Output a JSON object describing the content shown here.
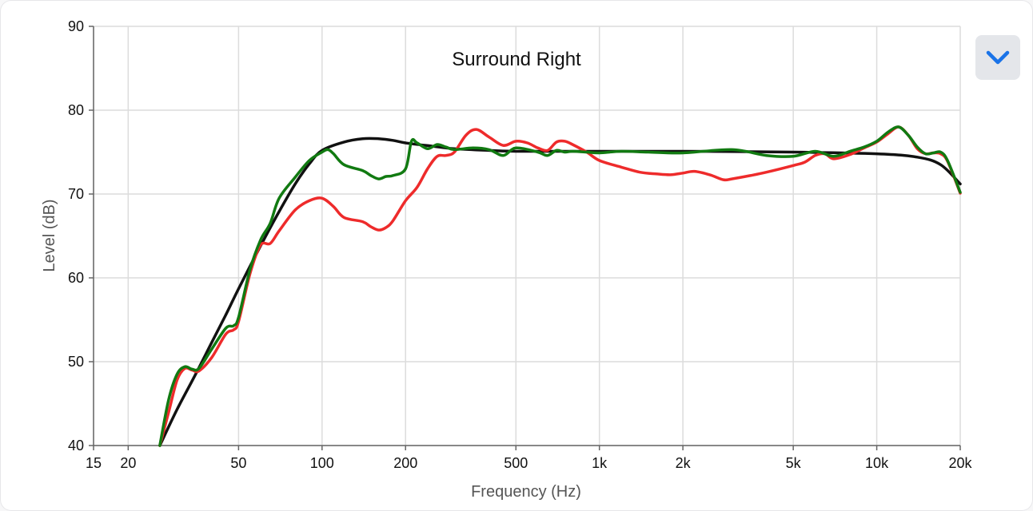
{
  "chart_data": {
    "type": "line",
    "title": "Surround Right",
    "xlabel": "Frequency (Hz)",
    "ylabel": "Level (dB)",
    "x_scale": "log",
    "xlim": [
      15,
      20000
    ],
    "ylim": [
      40,
      90
    ],
    "grid": true,
    "x_ticks": [
      {
        "value": 15,
        "label": "15"
      },
      {
        "value": 20,
        "label": "20"
      },
      {
        "value": 50,
        "label": "50"
      },
      {
        "value": 100,
        "label": "100"
      },
      {
        "value": 200,
        "label": "200"
      },
      {
        "value": 500,
        "label": "500"
      },
      {
        "value": 1000,
        "label": "1k"
      },
      {
        "value": 2000,
        "label": "2k"
      },
      {
        "value": 5000,
        "label": "5k"
      },
      {
        "value": 10000,
        "label": "10k"
      },
      {
        "value": 20000,
        "label": "20k"
      }
    ],
    "y_ticks": [
      {
        "value": 40,
        "label": "40"
      },
      {
        "value": 50,
        "label": "50"
      },
      {
        "value": 60,
        "label": "60"
      },
      {
        "value": 70,
        "label": "70"
      },
      {
        "value": 80,
        "label": "80"
      },
      {
        "value": 90,
        "label": "90"
      }
    ],
    "series": [
      {
        "color": "#111111",
        "x": [
          26,
          30,
          35,
          40,
          45,
          50,
          60,
          70,
          80,
          90,
          100,
          120,
          140,
          160,
          180,
          200,
          250,
          300,
          400,
          500,
          700,
          1000,
          2000,
          5000,
          10000,
          14000,
          17000,
          20000
        ],
        "y": [
          40,
          44.3,
          48.5,
          52.3,
          55.6,
          58.7,
          63.8,
          67.9,
          71.2,
          73.6,
          75.2,
          76.2,
          76.6,
          76.6,
          76.4,
          76.1,
          75.7,
          75.4,
          75.2,
          75.1,
          75.1,
          75.1,
          75.1,
          75.0,
          74.8,
          74.4,
          73.5,
          71.2
        ]
      },
      {
        "color": "#ee2b2b",
        "x": [
          26,
          28,
          30,
          32,
          34,
          36,
          40,
          45,
          48,
          50,
          55,
          60,
          65,
          70,
          80,
          90,
          100,
          110,
          120,
          140,
          150,
          160,
          170,
          180,
          200,
          220,
          240,
          260,
          280,
          300,
          330,
          360,
          400,
          450,
          500,
          550,
          600,
          650,
          700,
          750,
          800,
          900,
          1000,
          1200,
          1400,
          1600,
          1800,
          2000,
          2200,
          2500,
          2800,
          3000,
          3500,
          4000,
          5000,
          5500,
          6000,
          6500,
          7000,
          8000,
          9000,
          10000,
          11000,
          12000,
          13000,
          14000,
          15000,
          16000,
          17000,
          18000,
          20000
        ],
        "y": [
          40,
          44,
          47.8,
          49.2,
          49.0,
          48.9,
          50.5,
          53.3,
          53.8,
          54.8,
          60.5,
          63.9,
          64.1,
          65.6,
          68.1,
          69.2,
          69.5,
          68.5,
          67.2,
          66.7,
          66.1,
          65.7,
          66.0,
          66.8,
          69.2,
          70.8,
          73.0,
          74.5,
          74.6,
          75.0,
          77.0,
          77.7,
          76.8,
          75.8,
          76.3,
          76.1,
          75.5,
          75.2,
          76.2,
          76.3,
          75.9,
          75.0,
          74.0,
          73.2,
          72.6,
          72.4,
          72.3,
          72.5,
          72.7,
          72.3,
          71.7,
          71.8,
          72.2,
          72.6,
          73.4,
          73.8,
          74.6,
          74.8,
          74.2,
          74.7,
          75.5,
          76.2,
          77.2,
          78.0,
          77.0,
          75.4,
          74.8,
          74.9,
          74.8,
          73.9,
          70.1
        ]
      },
      {
        "color": "#117a11",
        "x": [
          26,
          28,
          30,
          32,
          34,
          36,
          40,
          45,
          48,
          50,
          55,
          60,
          65,
          70,
          80,
          90,
          100,
          105,
          110,
          120,
          140,
          150,
          160,
          170,
          180,
          200,
          210,
          220,
          240,
          260,
          280,
          300,
          350,
          400,
          450,
          500,
          600,
          650,
          700,
          750,
          800,
          900,
          1000,
          1200,
          1500,
          2000,
          3000,
          4000,
          5000,
          6000,
          7000,
          8000,
          9000,
          10000,
          11000,
          12000,
          13000,
          14000,
          15000,
          16000,
          17000,
          18000,
          20000
        ],
        "y": [
          40,
          45.5,
          48.5,
          49.4,
          49.1,
          49.2,
          51.5,
          54.0,
          54.3,
          55.3,
          61.0,
          64.5,
          66.5,
          69.5,
          72.0,
          74.0,
          75.0,
          75.3,
          74.8,
          73.5,
          72.8,
          72.2,
          71.8,
          72.1,
          72.2,
          73.0,
          76.3,
          76.1,
          75.4,
          75.9,
          75.6,
          75.3,
          75.5,
          75.3,
          74.6,
          75.5,
          75.0,
          74.6,
          75.2,
          75.0,
          75.1,
          75.0,
          74.9,
          75.1,
          75.0,
          74.9,
          75.3,
          74.6,
          74.5,
          75.1,
          74.5,
          75.1,
          75.6,
          76.3,
          77.4,
          78.0,
          77.0,
          75.6,
          74.8,
          74.9,
          75.0,
          74.0,
          70.2
        ]
      }
    ]
  },
  "ui": {
    "collapse_icon": "chevron-down-icon",
    "accent_color": "#1a73e8"
  }
}
